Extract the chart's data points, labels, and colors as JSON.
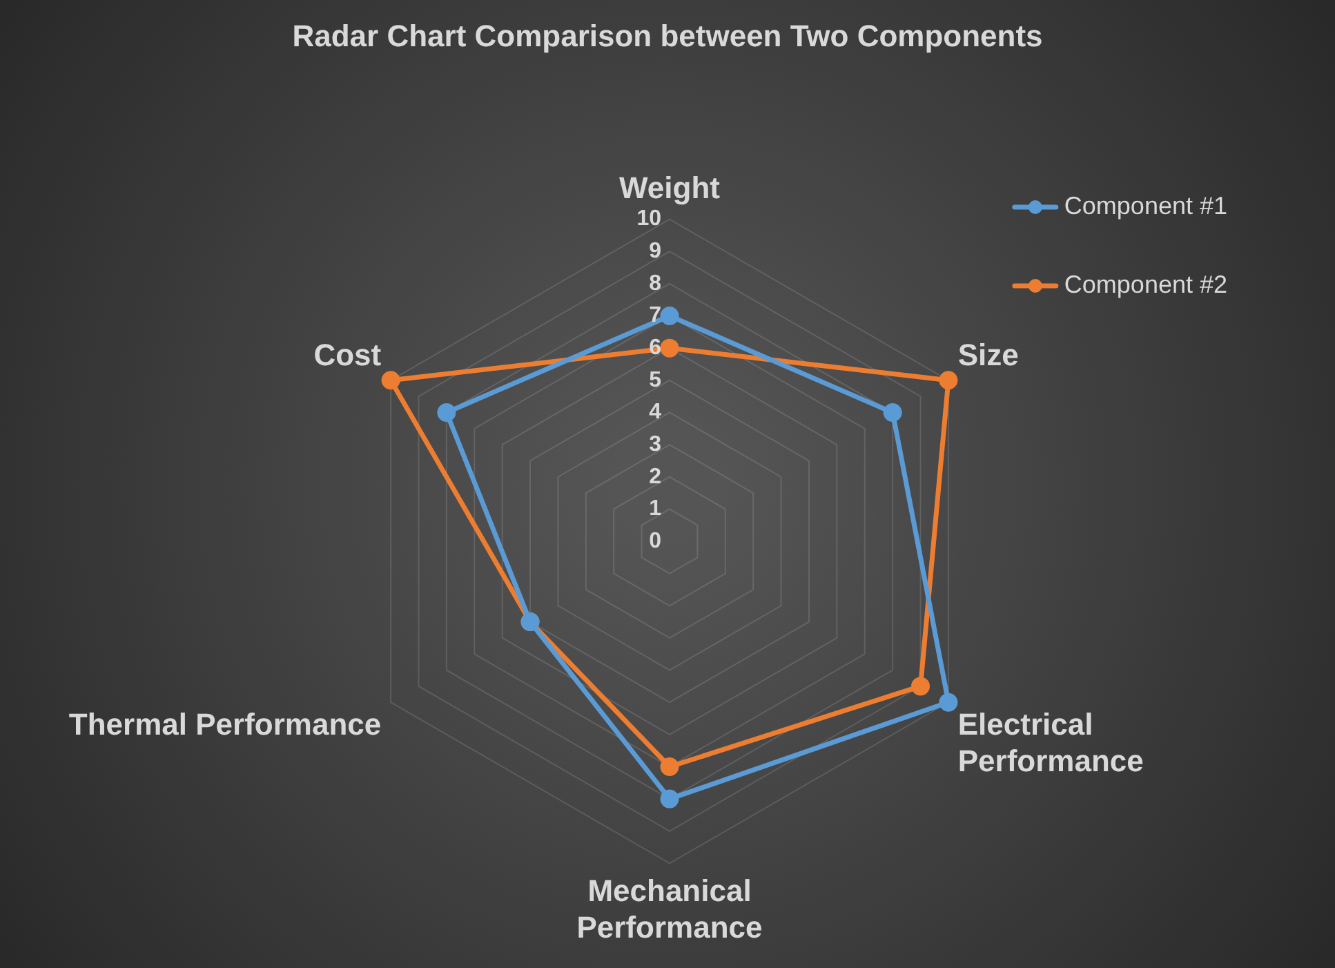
{
  "chart_data": {
    "type": "radar",
    "title": "Radar Chart Comparison between Two Components",
    "categories": [
      "Weight",
      "Size",
      "Electrical Performance",
      "Mechanical Performance",
      "Thermal Performance",
      "Cost"
    ],
    "series": [
      {
        "name": "Component #1",
        "color": "#5b9bd5",
        "values": [
          7,
          8,
          10,
          8,
          5,
          8
        ]
      },
      {
        "name": "Component #2",
        "color": "#ed7d31",
        "values": [
          6,
          10,
          9,
          7,
          5,
          10
        ]
      }
    ],
    "ylim": [
      0,
      10
    ],
    "yticks": [
      0,
      1,
      2,
      3,
      4,
      5,
      6,
      7,
      8,
      9,
      10
    ],
    "grid": true,
    "legend": "top right",
    "marker": "circle"
  }
}
